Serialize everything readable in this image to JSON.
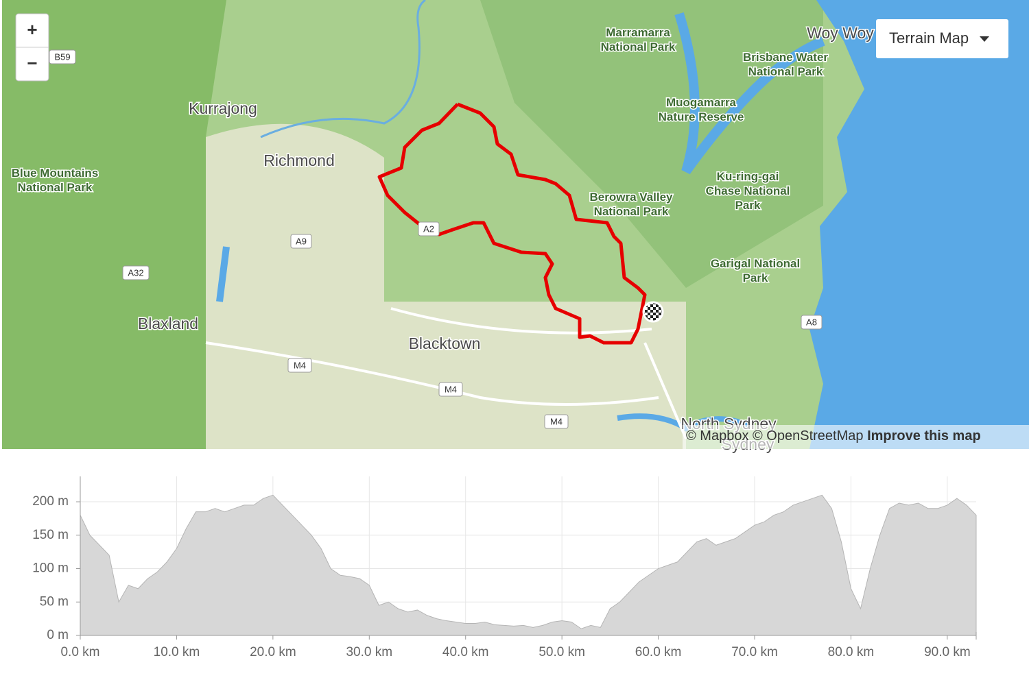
{
  "map": {
    "zoom_in": "+",
    "zoom_out": "−",
    "layer_button": "Terrain Map",
    "attribution": {
      "mapbox": "© Mapbox",
      "osm": "© OpenStreetMap",
      "improve": "Improve this map"
    },
    "places": {
      "woy_woy": "Woy Woy",
      "kurrajong": "Kurrajong",
      "richmond": "Richmond",
      "blaxland": "Blaxland",
      "blacktown": "Blacktown",
      "north_sydney": "North Sydney",
      "sydney": "Sydney"
    },
    "parks": {
      "marramarra": [
        "Marramarra",
        "National Park"
      ],
      "brisbane_water": [
        "Brisbane Water",
        "National Park"
      ],
      "muogamarra": [
        "Muogamarra",
        "Nature Reserve"
      ],
      "blue_mountains": [
        "Blue Mountains",
        "National Park"
      ],
      "ku_ring_gai": [
        "Ku-ring-gai",
        "Chase National",
        "Park"
      ],
      "berowra": [
        "Berowra Valley",
        "National Park"
      ],
      "garigal": [
        "Garigal National",
        "Park"
      ]
    },
    "roads": [
      "B59",
      "A9",
      "A32",
      "A2",
      "M4",
      "M4",
      "M4",
      "A8"
    ]
  },
  "chart_data": {
    "type": "area",
    "color": "#d7d7d7",
    "grid": true,
    "x": [
      0,
      1,
      2,
      3,
      4,
      5,
      6,
      7,
      8,
      9,
      10,
      11,
      12,
      13,
      14,
      15,
      16,
      17,
      18,
      19,
      20,
      21,
      22,
      23,
      24,
      25,
      26,
      27,
      28,
      29,
      30,
      31,
      32,
      33,
      34,
      35,
      36,
      37,
      38,
      39,
      40,
      41,
      42,
      43,
      44,
      45,
      46,
      47,
      48,
      49,
      50,
      51,
      52,
      53,
      54,
      55,
      56,
      57,
      58,
      59,
      60,
      61,
      62,
      63,
      64,
      65,
      66,
      67,
      68,
      69,
      70,
      71,
      72,
      73,
      74,
      75,
      76,
      77,
      78,
      79,
      80,
      81,
      82,
      83,
      84,
      85,
      86,
      87,
      88,
      89,
      90,
      91,
      92,
      93
    ],
    "values": [
      180,
      150,
      135,
      120,
      50,
      75,
      70,
      85,
      95,
      110,
      130,
      160,
      185,
      185,
      190,
      185,
      190,
      195,
      195,
      205,
      210,
      195,
      180,
      165,
      150,
      130,
      100,
      90,
      88,
      85,
      75,
      45,
      50,
      40,
      35,
      38,
      30,
      25,
      22,
      20,
      18,
      18,
      20,
      16,
      15,
      14,
      15,
      12,
      15,
      20,
      22,
      20,
      10,
      15,
      12,
      40,
      50,
      65,
      80,
      90,
      100,
      105,
      110,
      125,
      140,
      145,
      135,
      140,
      145,
      155,
      165,
      170,
      180,
      185,
      195,
      200,
      205,
      210,
      190,
      140,
      70,
      40,
      100,
      150,
      190,
      198,
      195,
      198,
      190,
      190,
      195,
      205,
      195,
      180
    ],
    "xlim": [
      0,
      93
    ],
    "ylim": [
      0,
      238
    ],
    "xticks": [
      {
        "value": 0,
        "label": "0.0 km"
      },
      {
        "value": 10,
        "label": "10.0 km"
      },
      {
        "value": 20,
        "label": "20.0 km"
      },
      {
        "value": 30,
        "label": "30.0 km"
      },
      {
        "value": 40,
        "label": "40.0 km"
      },
      {
        "value": 50,
        "label": "50.0 km"
      },
      {
        "value": 60,
        "label": "60.0 km"
      },
      {
        "value": 70,
        "label": "70.0 km"
      },
      {
        "value": 80,
        "label": "80.0 km"
      },
      {
        "value": 90,
        "label": "90.0 km"
      }
    ],
    "yticks": [
      {
        "value": 0,
        "label": "0 m"
      },
      {
        "value": 50,
        "label": "50 m"
      },
      {
        "value": 100,
        "label": "100 m"
      },
      {
        "value": 150,
        "label": "150 m"
      },
      {
        "value": 200,
        "label": "200 m"
      }
    ]
  }
}
